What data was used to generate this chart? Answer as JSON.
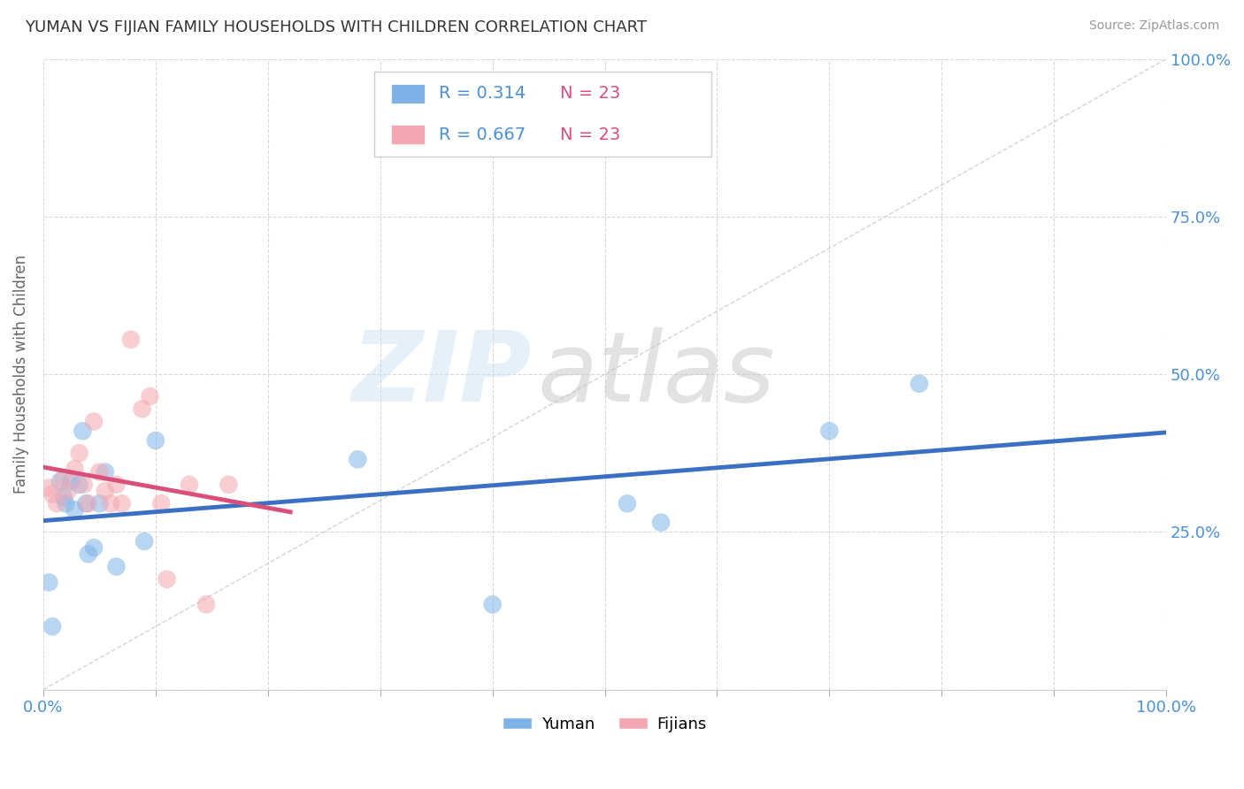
{
  "title": "YUMAN VS FIJIAN FAMILY HOUSEHOLDS WITH CHILDREN CORRELATION CHART",
  "source_text": "Source: ZipAtlas.com",
  "ylabel": "Family Households with Children",
  "watermark_zip": "ZIP",
  "watermark_atlas": "atlas",
  "xlim": [
    0.0,
    1.0
  ],
  "ylim": [
    0.0,
    1.0
  ],
  "x_ticks": [
    0.0,
    0.1,
    0.2,
    0.3,
    0.4,
    0.5,
    0.6,
    0.7,
    0.8,
    0.9,
    1.0
  ],
  "y_ticks": [
    0.0,
    0.25,
    0.5,
    0.75,
    1.0
  ],
  "y_tick_labels": [
    "",
    "25.0%",
    "50.0%",
    "75.0%",
    "100.0%"
  ],
  "yuman_color": "#7fb3e8",
  "fijian_color": "#f4a7b0",
  "yuman_line_color": "#3a6fc4",
  "fijian_line_color": "#d94f7a",
  "diagonal_color": "#d0d0d0",
  "label_color": "#4a90d9",
  "legend_r_color": "#4a90d9",
  "legend_n_color": "#d94f7a",
  "grid_color": "#d8d8d8",
  "legend_r_yuman": "R = 0.314",
  "legend_n_yuman": "N = 23",
  "legend_r_fijian": "R = 0.667",
  "legend_n_fijian": "N = 23",
  "yuman_x": [
    0.005,
    0.008,
    0.015,
    0.018,
    0.02,
    0.025,
    0.028,
    0.032,
    0.035,
    0.038,
    0.04,
    0.045,
    0.05,
    0.055,
    0.065,
    0.09,
    0.1,
    0.28,
    0.4,
    0.52,
    0.55,
    0.7,
    0.78
  ],
  "yuman_y": [
    0.17,
    0.1,
    0.33,
    0.305,
    0.295,
    0.33,
    0.285,
    0.325,
    0.41,
    0.295,
    0.215,
    0.225,
    0.295,
    0.345,
    0.195,
    0.235,
    0.395,
    0.365,
    0.135,
    0.295,
    0.265,
    0.41,
    0.485
  ],
  "fijian_x": [
    0.005,
    0.008,
    0.012,
    0.018,
    0.022,
    0.028,
    0.032,
    0.036,
    0.04,
    0.045,
    0.05,
    0.055,
    0.06,
    0.065,
    0.07,
    0.078,
    0.088,
    0.095,
    0.105,
    0.11,
    0.13,
    0.145,
    0.165
  ],
  "fijian_y": [
    0.32,
    0.31,
    0.295,
    0.335,
    0.315,
    0.35,
    0.375,
    0.325,
    0.295,
    0.425,
    0.345,
    0.315,
    0.295,
    0.325,
    0.295,
    0.555,
    0.445,
    0.465,
    0.295,
    0.175,
    0.325,
    0.135,
    0.325
  ],
  "fijian_line_xrange": [
    0.0,
    0.22
  ],
  "yuman_line_xrange": [
    0.0,
    1.0
  ]
}
